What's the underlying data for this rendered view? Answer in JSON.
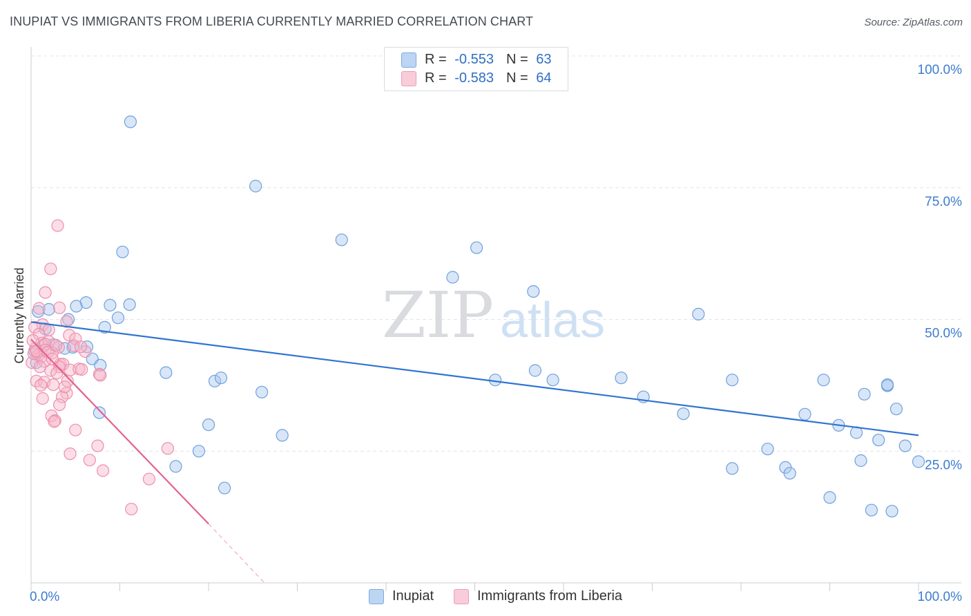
{
  "title": "INUPIAT VS IMMIGRANTS FROM LIBERIA CURRENTLY MARRIED CORRELATION CHART",
  "source": "Source: ZipAtlas.com",
  "watermark": {
    "zip": "ZIP",
    "atlas": "atlas"
  },
  "legend": {
    "rows": [
      {
        "r_label": "R =",
        "r_value": "-0.553",
        "n_label": "N =",
        "n_value": "63"
      },
      {
        "r_label": "R =",
        "r_value": "-0.583",
        "n_label": "N =",
        "n_value": "64"
      }
    ]
  },
  "bottom_legend": [
    "Inupiat",
    "Immigrants from Liberia"
  ],
  "colors": {
    "inupiat_fill": "#a9c8ef",
    "inupiat_stroke": "#6fa0dc",
    "inupiat_line": "#2f74d0",
    "liberia_fill": "#f6b6ca",
    "liberia_stroke": "#ec8fac",
    "liberia_line": "#e4608e",
    "axis_label": "#3d7bd0",
    "grid": "#e2e4e8"
  },
  "chart_data": {
    "type": "scatter",
    "title": "INUPIAT VS IMMIGRANTS FROM LIBERIA CURRENTLY MARRIED CORRELATION CHART",
    "xlabel": "",
    "ylabel": "Currently Married",
    "xlim": [
      0,
      100
    ],
    "ylim": [
      0,
      100
    ],
    "x_tick_labels": [
      "0.0%",
      "100.0%"
    ],
    "y_tick_labels": [
      "25.0%",
      "50.0%",
      "75.0%",
      "100.0%"
    ],
    "y_ticks": [
      25,
      50,
      75,
      100
    ],
    "series": [
      {
        "name": "Inupiat",
        "r": -0.553,
        "n": 63,
        "trend": {
          "x0": 0,
          "y0": 49.5,
          "x1": 100,
          "y1": 28.0
        },
        "points": [
          [
            11.2,
            87.5
          ],
          [
            25.3,
            75.3
          ],
          [
            10.3,
            62.8
          ],
          [
            35.0,
            65.1
          ],
          [
            50.2,
            63.6
          ],
          [
            47.5,
            58.0
          ],
          [
            56.6,
            55.3
          ],
          [
            75.2,
            51.0
          ],
          [
            6.2,
            53.2
          ],
          [
            5.1,
            52.5
          ],
          [
            11.1,
            52.8
          ],
          [
            8.9,
            52.7
          ],
          [
            2.0,
            51.9
          ],
          [
            0.8,
            51.5
          ],
          [
            4.2,
            50.0
          ],
          [
            9.8,
            50.3
          ],
          [
            8.3,
            48.5
          ],
          [
            1.6,
            48.2
          ],
          [
            2.5,
            45.2
          ],
          [
            4.7,
            44.7
          ],
          [
            6.3,
            44.8
          ],
          [
            6.9,
            42.5
          ],
          [
            7.8,
            41.3
          ],
          [
            15.2,
            39.9
          ],
          [
            20.7,
            38.3
          ],
          [
            21.4,
            38.9
          ],
          [
            26.0,
            36.2
          ],
          [
            52.3,
            38.5
          ],
          [
            56.8,
            40.3
          ],
          [
            58.8,
            38.5
          ],
          [
            66.5,
            38.9
          ],
          [
            79.0,
            38.5
          ],
          [
            89.3,
            38.5
          ],
          [
            73.5,
            32.1
          ],
          [
            69.0,
            35.3
          ],
          [
            87.2,
            32.0
          ],
          [
            93.9,
            35.8
          ],
          [
            96.5,
            37.4
          ],
          [
            96.5,
            37.6
          ],
          [
            97.5,
            33.0
          ],
          [
            91.0,
            29.9
          ],
          [
            93.0,
            28.5
          ],
          [
            95.5,
            27.1
          ],
          [
            98.5,
            26.0
          ],
          [
            100.0,
            23.0
          ],
          [
            93.5,
            23.2
          ],
          [
            83.0,
            25.4
          ],
          [
            79.0,
            21.7
          ],
          [
            85.0,
            21.9
          ],
          [
            85.5,
            20.8
          ],
          [
            90.0,
            16.2
          ],
          [
            94.7,
            13.8
          ],
          [
            97.0,
            13.6
          ],
          [
            7.7,
            32.3
          ],
          [
            20.0,
            30.0
          ],
          [
            28.3,
            28.0
          ],
          [
            18.9,
            25.0
          ],
          [
            16.3,
            22.1
          ],
          [
            21.8,
            18.0
          ],
          [
            0.4,
            44.0
          ],
          [
            1.4,
            45.0
          ],
          [
            0.6,
            41.8
          ],
          [
            3.8,
            44.5
          ]
        ]
      },
      {
        "name": "Immigrants from Liberia",
        "r": -0.583,
        "n": 64,
        "trend": {
          "x0": 0,
          "y0": 46.2,
          "x1": 20,
          "y1": 11.2,
          "dash_x1": 26.3,
          "dash_y1": 0
        },
        "points": [
          [
            3.0,
            67.8
          ],
          [
            2.2,
            59.6
          ],
          [
            1.6,
            55.1
          ],
          [
            0.9,
            52.1
          ],
          [
            3.2,
            52.2
          ],
          [
            4.0,
            49.6
          ],
          [
            1.3,
            49.0
          ],
          [
            2.0,
            48.0
          ],
          [
            0.4,
            48.5
          ],
          [
            0.9,
            47.2
          ],
          [
            4.3,
            47.0
          ],
          [
            5.0,
            46.3
          ],
          [
            1.2,
            45.5
          ],
          [
            2.0,
            45.8
          ],
          [
            1.6,
            45.3
          ],
          [
            4.8,
            45.0
          ],
          [
            3.1,
            44.7
          ],
          [
            0.5,
            44.5
          ],
          [
            1.6,
            44.2
          ],
          [
            2.4,
            43.6
          ],
          [
            0.8,
            43.2
          ],
          [
            1.1,
            42.8
          ],
          [
            1.5,
            42.0
          ],
          [
            0.1,
            41.8
          ],
          [
            3.3,
            41.5
          ],
          [
            3.6,
            41.5
          ],
          [
            3.2,
            41.0
          ],
          [
            4.4,
            40.4
          ],
          [
            5.4,
            40.6
          ],
          [
            5.7,
            40.5
          ],
          [
            2.2,
            40.3
          ],
          [
            7.7,
            39.6
          ],
          [
            7.8,
            39.4
          ],
          [
            2.9,
            39.8
          ],
          [
            0.6,
            38.3
          ],
          [
            1.5,
            38.1
          ],
          [
            4.1,
            38.3
          ],
          [
            2.5,
            37.6
          ],
          [
            1.1,
            37.5
          ],
          [
            4.0,
            36.0
          ],
          [
            3.5,
            35.3
          ],
          [
            1.3,
            35.0
          ],
          [
            3.2,
            33.8
          ],
          [
            2.3,
            31.7
          ],
          [
            2.7,
            30.8
          ],
          [
            2.6,
            30.6
          ],
          [
            5.0,
            29.0
          ],
          [
            7.5,
            26.0
          ],
          [
            15.4,
            25.5
          ],
          [
            4.4,
            24.5
          ],
          [
            6.6,
            23.3
          ],
          [
            8.1,
            21.3
          ],
          [
            13.3,
            19.7
          ],
          [
            11.3,
            14.0
          ],
          [
            0.3,
            43.5
          ],
          [
            0.6,
            44.0
          ],
          [
            1.9,
            43.8
          ],
          [
            2.8,
            45.1
          ],
          [
            0.2,
            46.0
          ],
          [
            1.0,
            41.0
          ],
          [
            2.4,
            42.5
          ],
          [
            3.8,
            37.2
          ],
          [
            6.1,
            43.9
          ],
          [
            5.6,
            44.8
          ]
        ]
      }
    ]
  }
}
